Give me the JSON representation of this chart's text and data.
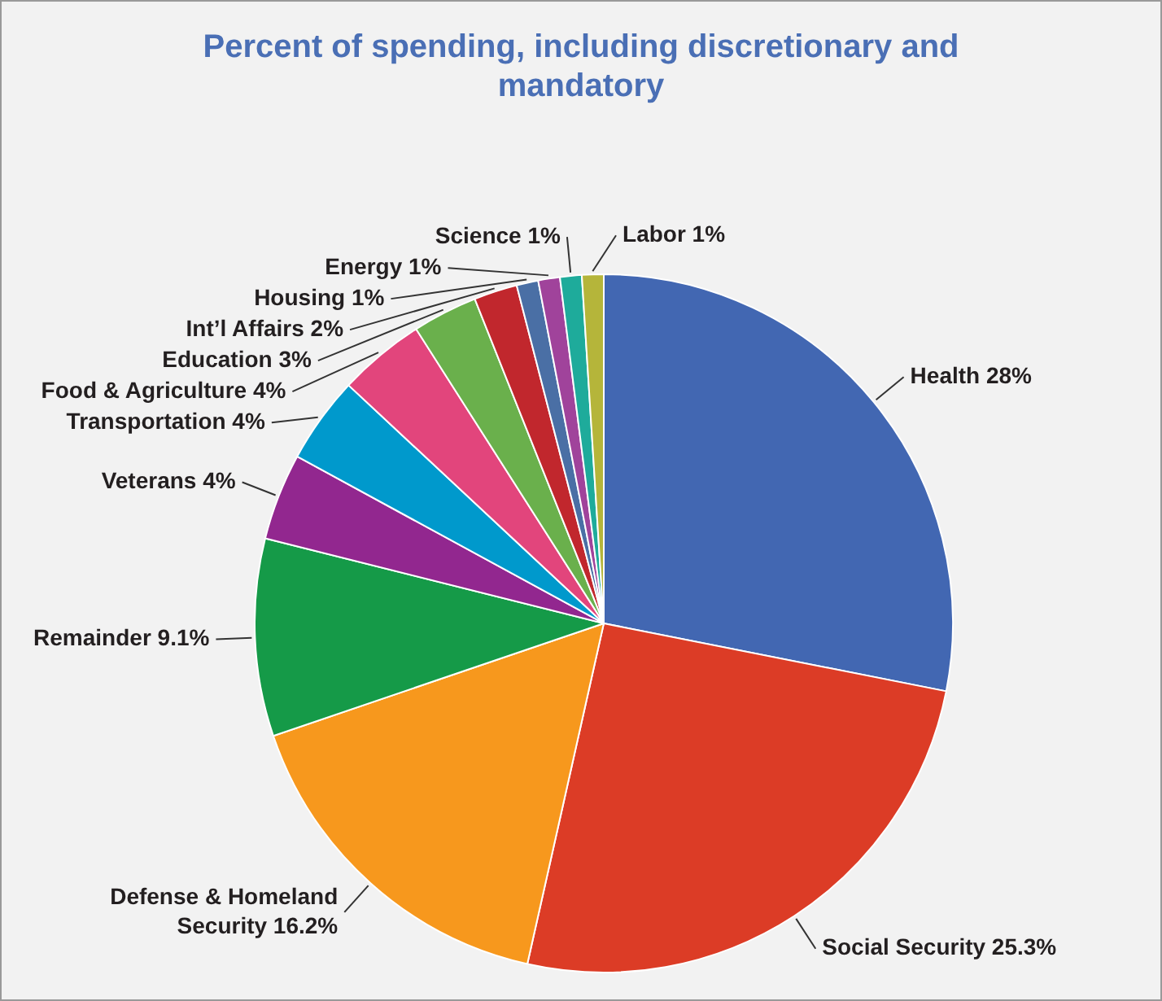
{
  "chart_data": {
    "type": "pie",
    "title": "Percent of spending, including discretionary and mandatory",
    "categories": [
      "Health",
      "Social Security",
      "Defense & Homeland Security",
      "Remainder",
      "Veterans",
      "Transportation",
      "Food & Agriculture",
      "Education",
      "Int’l Affairs",
      "Housing",
      "Energy",
      "Science",
      "Labor"
    ],
    "values": [
      28,
      25.3,
      16.2,
      9.1,
      4,
      4,
      4,
      3,
      2,
      1,
      1,
      1,
      1
    ],
    "value_labels": [
      "28%",
      "25.3%",
      "16.2%",
      "9.1%",
      "4%",
      "4%",
      "4%",
      "3%",
      "2%",
      "1%",
      "1%",
      "1%",
      "1%"
    ],
    "colors": [
      "#4267b2",
      "#dc3c26",
      "#f7981d",
      "#159a48",
      "#92278f",
      "#0099cc",
      "#e2457c",
      "#6ab04c",
      "#c1272d",
      "#4a6fa5",
      "#a0439b",
      "#1eab9b",
      "#b5b53a"
    ],
    "legend": false
  }
}
